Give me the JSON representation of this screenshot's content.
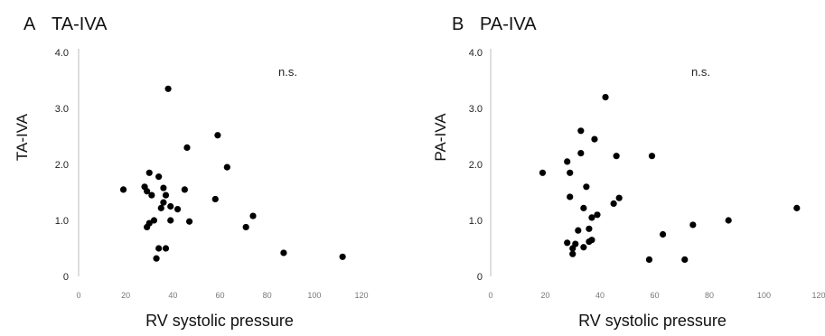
{
  "chart_data": [
    {
      "type": "scatter",
      "panel": "A",
      "title": "TA-IVA",
      "xlabel": "RV systolic pressure",
      "ylabel": "TA-IVA",
      "annotation": "n.s.",
      "xlim": [
        0,
        120
      ],
      "ylim": [
        0,
        4.0
      ],
      "xticks": [
        "0",
        "20",
        "40",
        "60",
        "80",
        "100",
        "120"
      ],
      "yticks": [
        "0",
        "1.0",
        "2.0",
        "3.0",
        "4.0"
      ],
      "grid": false,
      "x": [
        19,
        28,
        29,
        29,
        30,
        30,
        31,
        32,
        33,
        34,
        34,
        35,
        36,
        36,
        37,
        37,
        38,
        39,
        39,
        42,
        45,
        46,
        47,
        58,
        59,
        63,
        71,
        74,
        87,
        112
      ],
      "y": [
        1.55,
        1.6,
        1.52,
        0.88,
        0.95,
        1.85,
        1.45,
        1.0,
        0.32,
        1.78,
        0.5,
        1.22,
        1.58,
        1.32,
        1.45,
        0.5,
        3.35,
        1.25,
        1.0,
        1.2,
        1.55,
        2.3,
        0.98,
        1.38,
        2.52,
        1.95,
        0.88,
        1.08,
        0.42,
        0.35
      ]
    },
    {
      "type": "scatter",
      "panel": "B",
      "title": "PA-IVA",
      "xlabel": "RV systolic pressure",
      "ylabel": "PA-IVA",
      "annotation": "n.s.",
      "xlim": [
        0,
        120
      ],
      "ylim": [
        0,
        4.0
      ],
      "xticks": [
        "0",
        "20",
        "40",
        "60",
        "80",
        "100",
        "120"
      ],
      "yticks": [
        "0",
        "1.0",
        "2.0",
        "3.0",
        "4.0"
      ],
      "grid": false,
      "x": [
        19,
        28,
        28,
        29,
        29,
        30,
        30,
        31,
        32,
        33,
        33,
        34,
        34,
        35,
        36,
        36,
        37,
        37,
        38,
        39,
        42,
        45,
        46,
        47,
        58,
        59,
        63,
        71,
        74,
        87,
        112
      ],
      "y": [
        1.85,
        2.05,
        0.6,
        1.85,
        1.42,
        0.5,
        0.4,
        0.58,
        0.82,
        2.6,
        2.2,
        1.22,
        0.52,
        1.6,
        0.62,
        0.85,
        1.05,
        0.65,
        2.45,
        1.1,
        3.2,
        1.3,
        2.15,
        1.4,
        0.3,
        2.15,
        0.75,
        0.3,
        0.92,
        1.0,
        1.22
      ]
    }
  ]
}
